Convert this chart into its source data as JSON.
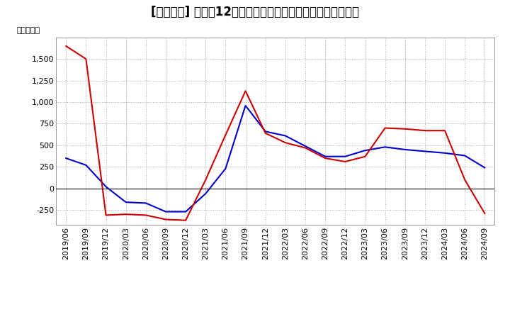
{
  "title": "[９４２４] 利益だ12か月移動合計の対前年同期増減額の推移",
  "ylabel": "（百万円）",
  "x_labels": [
    "2019/06",
    "2019/09",
    "2019/12",
    "2020/03",
    "2020/06",
    "2020/09",
    "2020/12",
    "2021/03",
    "2021/06",
    "2021/09",
    "2021/12",
    "2022/03",
    "2022/06",
    "2022/09",
    "2022/12",
    "2023/03",
    "2023/06",
    "2023/09",
    "2023/12",
    "2024/03",
    "2024/06",
    "2024/09"
  ],
  "keijo_rieki": [
    350,
    270,
    20,
    -160,
    -170,
    -270,
    -270,
    -60,
    230,
    960,
    660,
    610,
    490,
    370,
    370,
    440,
    480,
    450,
    430,
    410,
    380,
    240
  ],
  "touki_jun_rieki": [
    1650,
    1500,
    -310,
    -300,
    -310,
    -360,
    -370,
    100,
    620,
    1130,
    640,
    530,
    470,
    350,
    310,
    370,
    700,
    690,
    670,
    670,
    100,
    -290
  ],
  "keijo_color": "#0000cc",
  "touki_color": "#cc0000",
  "background_color": "#ffffff",
  "plot_bg_color": "#ffffff",
  "grid_color": "#aaaaaa",
  "ylim": [
    -420,
    1750
  ],
  "yticks": [
    -250,
    0,
    250,
    500,
    750,
    1000,
    1250,
    1500
  ],
  "title_fontsize": 12,
  "axis_fontsize": 8,
  "legend_fontsize": 9
}
